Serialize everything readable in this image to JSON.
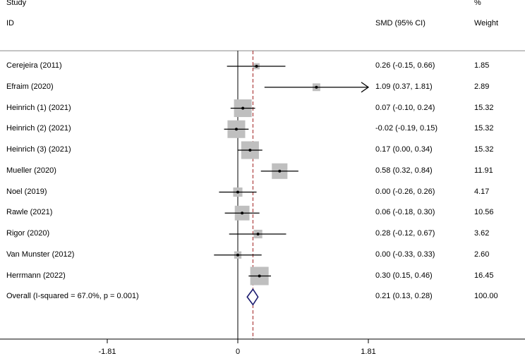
{
  "header": {
    "study_line1": "Study",
    "study_line2": "ID",
    "effect_header": "SMD (95% CI)",
    "weight_line1": "%",
    "weight_line2": "Weight"
  },
  "chart_data": {
    "type": "forest",
    "measure": "SMD (95% CI)",
    "xlim": [
      -1.81,
      1.81
    ],
    "x_ticks": [
      "-1.81",
      "0",
      "1.81"
    ],
    "null_line": 0,
    "pooled_line": 0.21,
    "studies": [
      {
        "label": "Cerejeira (2011)",
        "est": 0.26,
        "lo": -0.15,
        "hi": 0.66,
        "ci_text": "0.26 (-0.15, 0.66)",
        "weight": 1.85,
        "weight_text": "1.85",
        "arrow": false
      },
      {
        "label": "Efraim (2020)",
        "est": 1.09,
        "lo": 0.37,
        "hi": 1.81,
        "ci_text": "1.09 (0.37, 1.81)",
        "weight": 2.89,
        "weight_text": "2.89",
        "arrow": true
      },
      {
        "label": "Heinrich (1) (2021)",
        "est": 0.07,
        "lo": -0.1,
        "hi": 0.24,
        "ci_text": "0.07 (-0.10, 0.24)",
        "weight": 15.32,
        "weight_text": "15.32",
        "arrow": false
      },
      {
        "label": "Heinrich (2) (2021)",
        "est": -0.02,
        "lo": -0.19,
        "hi": 0.15,
        "ci_text": "-0.02 (-0.19, 0.15)",
        "weight": 15.32,
        "weight_text": "15.32",
        "arrow": false
      },
      {
        "label": "Heinrich (3) (2021)",
        "est": 0.17,
        "lo": 0.0,
        "hi": 0.34,
        "ci_text": "0.17 (0.00, 0.34)",
        "weight": 15.32,
        "weight_text": "15.32",
        "arrow": false
      },
      {
        "label": "Mueller (2020)",
        "est": 0.58,
        "lo": 0.32,
        "hi": 0.84,
        "ci_text": "0.58 (0.32, 0.84)",
        "weight": 11.91,
        "weight_text": "11.91",
        "arrow": false
      },
      {
        "label": "Noel (2019)",
        "est": 0.0,
        "lo": -0.26,
        "hi": 0.26,
        "ci_text": "0.00 (-0.26, 0.26)",
        "weight": 4.17,
        "weight_text": "4.17",
        "arrow": false
      },
      {
        "label": "Rawle (2021)",
        "est": 0.06,
        "lo": -0.18,
        "hi": 0.3,
        "ci_text": "0.06 (-0.18, 0.30)",
        "weight": 10.56,
        "weight_text": "10.56",
        "arrow": false
      },
      {
        "label": "Rigor (2020)",
        "est": 0.28,
        "lo": -0.12,
        "hi": 0.67,
        "ci_text": "0.28 (-0.12, 0.67)",
        "weight": 3.62,
        "weight_text": "3.62",
        "arrow": false
      },
      {
        "label": "Van Munster (2012)",
        "est": 0.0,
        "lo": -0.33,
        "hi": 0.33,
        "ci_text": "0.00 (-0.33, 0.33)",
        "weight": 2.6,
        "weight_text": "2.60",
        "arrow": false
      },
      {
        "label": "Herrmann (2022)",
        "est": 0.3,
        "lo": 0.15,
        "hi": 0.46,
        "ci_text": "0.30 (0.15, 0.46)",
        "weight": 16.45,
        "weight_text": "16.45",
        "arrow": false
      }
    ],
    "overall": {
      "label": "Overall  (I-squared = 67.0%, p = 0.001)",
      "est": 0.21,
      "lo": 0.13,
      "hi": 0.28,
      "ci_text": "0.21 (0.13, 0.28)",
      "weight_text": "100.00"
    },
    "colors": {
      "square": "#bfbfbf",
      "line": "#000000",
      "diamond": "#1a1a6e",
      "pooled_line": "#a02020",
      "separator": "#888888"
    }
  }
}
